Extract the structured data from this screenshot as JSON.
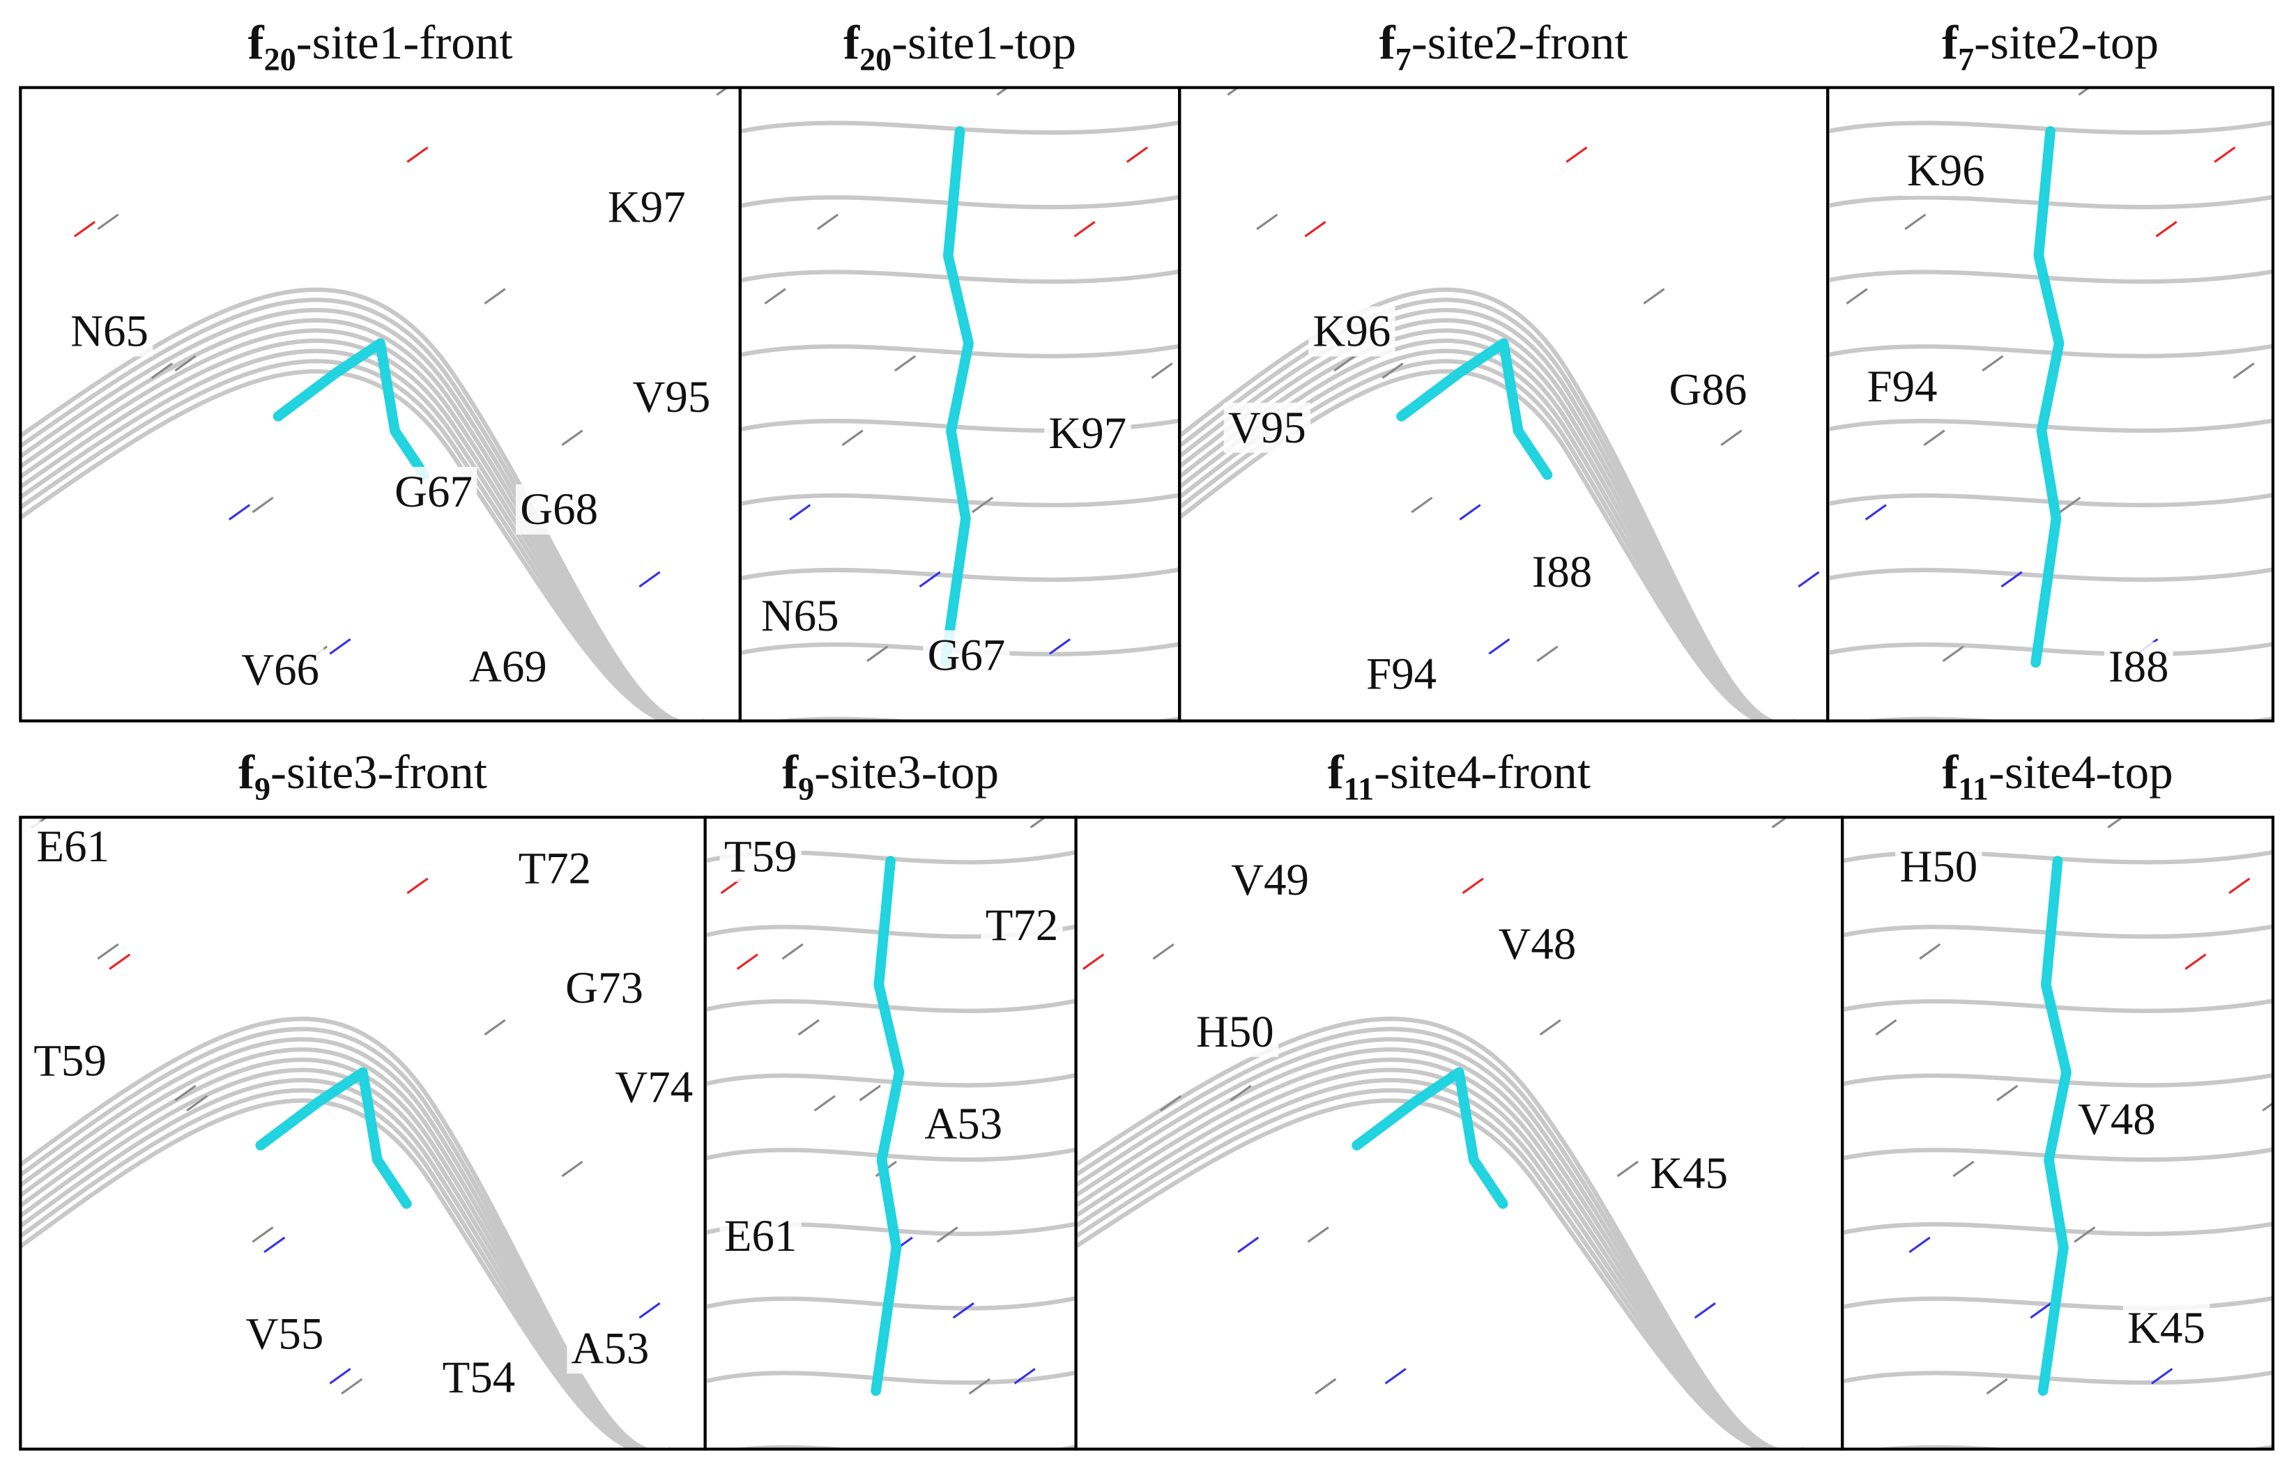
{
  "panels": [
    {
      "title": {
        "base": "f",
        "sub": "20",
        "rest": "-site1-front"
      },
      "labels": [
        "K97",
        "N65",
        "V95",
        "G67",
        "G68",
        "V66",
        "A69"
      ]
    },
    {
      "title": {
        "base": "f",
        "sub": "20",
        "rest": "-site1-top"
      },
      "labels": [
        "K97",
        "N65",
        "G67"
      ]
    },
    {
      "title": {
        "base": "f",
        "sub": "7",
        "rest": "-site2-front"
      },
      "labels": [
        "K96",
        "G86",
        "V95",
        "I88",
        "F94"
      ]
    },
    {
      "title": {
        "base": "f",
        "sub": "7",
        "rest": "-site2-top"
      },
      "labels": [
        "K96",
        "F94",
        "I88"
      ]
    },
    {
      "title": {
        "base": "f",
        "sub": "9",
        "rest": "-site3-front"
      },
      "labels": [
        "E61",
        "T72",
        "G73",
        "T59",
        "V74",
        "V55",
        "A53",
        "T54"
      ]
    },
    {
      "title": {
        "base": "f",
        "sub": "9",
        "rest": "-site3-top"
      },
      "labels": [
        "T59",
        "T72",
        "A53",
        "E61"
      ]
    },
    {
      "title": {
        "base": "f",
        "sub": "11",
        "rest": "-site4-front"
      },
      "labels": [
        "V49",
        "V48",
        "H50",
        "K45"
      ]
    },
    {
      "title": {
        "base": "f",
        "sub": "11",
        "rest": "-site4-top"
      },
      "labels": [
        "H50",
        "V48",
        "K45"
      ]
    }
  ]
}
